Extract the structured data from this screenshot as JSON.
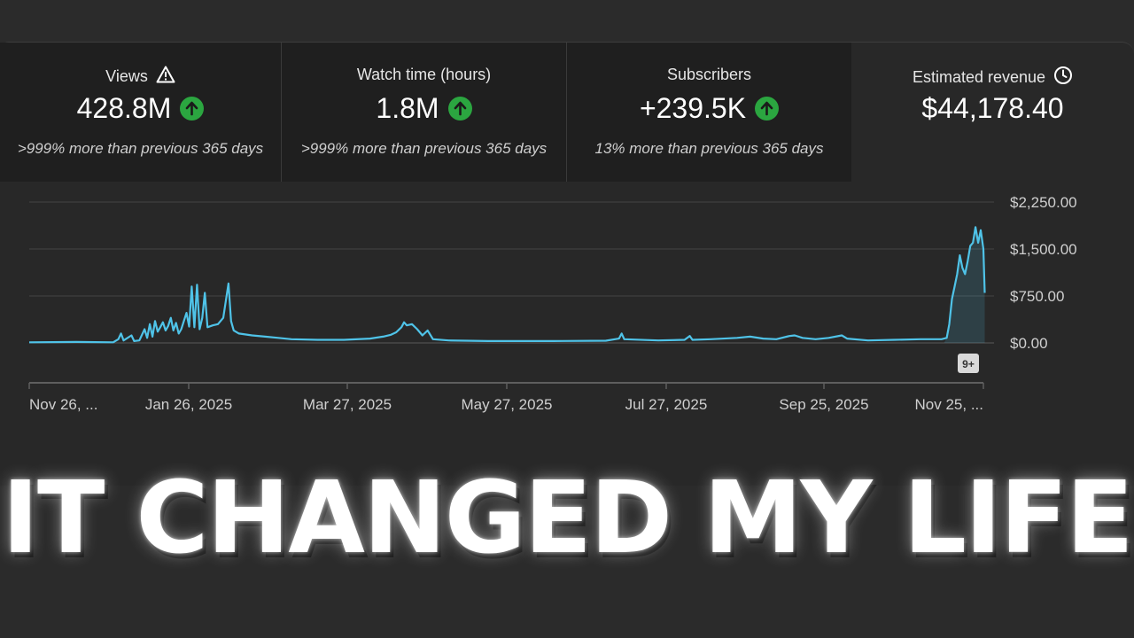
{
  "cards": [
    {
      "title": "Views",
      "title_icon": "warning-icon",
      "value": "428.8M",
      "trend_icon": "arrow-up-circle-icon",
      "sub": ">999% more than previous 365 days"
    },
    {
      "title": "Watch time (hours)",
      "value": "1.8M",
      "trend_icon": "arrow-up-circle-icon",
      "sub": ">999% more than previous 365 days"
    },
    {
      "title": "Subscribers",
      "value": "+239.5K",
      "trend_icon": "arrow-up-circle-icon",
      "sub": "13% more than previous 365 days"
    },
    {
      "title": "Estimated revenue",
      "title_icon": "clock-icon",
      "value": "$44,178.40"
    }
  ],
  "badge": "9+",
  "headline": "IT CHANGED MY LIFE",
  "colors": {
    "line": "#4fc3e8",
    "trend_up": "#2ba640"
  },
  "chart_data": {
    "type": "area",
    "x_tick_labels": [
      "Nov 26, ...",
      "Jan 26, 2025",
      "Mar 27, 2025",
      "May 27, 2025",
      "Jul 27, 2025",
      "Sep 25, 2025",
      "Nov 25, ..."
    ],
    "y_tick_labels": [
      "$2,250.00",
      "$1,500.00",
      "$750.00",
      "$0.00"
    ],
    "ylim": [
      0,
      2250
    ],
    "grid": true,
    "n_days": 365,
    "points": [
      [
        0,
        10
      ],
      [
        18,
        15
      ],
      [
        32,
        10
      ],
      [
        34,
        60
      ],
      [
        35,
        150
      ],
      [
        36,
        40
      ],
      [
        39,
        120
      ],
      [
        40,
        30
      ],
      [
        42,
        40
      ],
      [
        44,
        220
      ],
      [
        45,
        80
      ],
      [
        46,
        300
      ],
      [
        47,
        100
      ],
      [
        48,
        350
      ],
      [
        49,
        180
      ],
      [
        50,
        250
      ],
      [
        51,
        330
      ],
      [
        52,
        200
      ],
      [
        53,
        270
      ],
      [
        54,
        400
      ],
      [
        55,
        200
      ],
      [
        56,
        320
      ],
      [
        57,
        150
      ],
      [
        58,
        220
      ],
      [
        60,
        480
      ],
      [
        61,
        260
      ],
      [
        62,
        900
      ],
      [
        63,
        250
      ],
      [
        64,
        930
      ],
      [
        65,
        220
      ],
      [
        66,
        400
      ],
      [
        67,
        800
      ],
      [
        68,
        250
      ],
      [
        70,
        280
      ],
      [
        72,
        300
      ],
      [
        74,
        400
      ],
      [
        76,
        950
      ],
      [
        77,
        350
      ],
      [
        78,
        200
      ],
      [
        80,
        150
      ],
      [
        85,
        120
      ],
      [
        90,
        100
      ],
      [
        95,
        80
      ],
      [
        100,
        60
      ],
      [
        110,
        50
      ],
      [
        120,
        50
      ],
      [
        130,
        70
      ],
      [
        135,
        100
      ],
      [
        138,
        130
      ],
      [
        140,
        170
      ],
      [
        142,
        250
      ],
      [
        143,
        330
      ],
      [
        144,
        280
      ],
      [
        146,
        300
      ],
      [
        148,
        220
      ],
      [
        150,
        120
      ],
      [
        152,
        200
      ],
      [
        154,
        60
      ],
      [
        160,
        40
      ],
      [
        175,
        30
      ],
      [
        190,
        30
      ],
      [
        200,
        30
      ],
      [
        220,
        35
      ],
      [
        225,
        70
      ],
      [
        226,
        150
      ],
      [
        227,
        60
      ],
      [
        240,
        40
      ],
      [
        250,
        50
      ],
      [
        252,
        110
      ],
      [
        253,
        50
      ],
      [
        260,
        60
      ],
      [
        270,
        80
      ],
      [
        275,
        100
      ],
      [
        280,
        70
      ],
      [
        285,
        60
      ],
      [
        290,
        110
      ],
      [
        292,
        120
      ],
      [
        295,
        80
      ],
      [
        300,
        60
      ],
      [
        305,
        80
      ],
      [
        310,
        120
      ],
      [
        312,
        70
      ],
      [
        320,
        40
      ],
      [
        330,
        50
      ],
      [
        340,
        60
      ],
      [
        348,
        60
      ],
      [
        350,
        80
      ],
      [
        351,
        300
      ],
      [
        352,
        700
      ],
      [
        353,
        900
      ],
      [
        354,
        1100
      ],
      [
        355,
        1400
      ],
      [
        356,
        1200
      ],
      [
        357,
        1100
      ],
      [
        358,
        1300
      ],
      [
        359,
        1550
      ],
      [
        360,
        1600
      ],
      [
        361,
        1850
      ],
      [
        362,
        1600
      ],
      [
        363,
        1800
      ],
      [
        364,
        1500
      ],
      [
        364.5,
        800
      ]
    ]
  }
}
